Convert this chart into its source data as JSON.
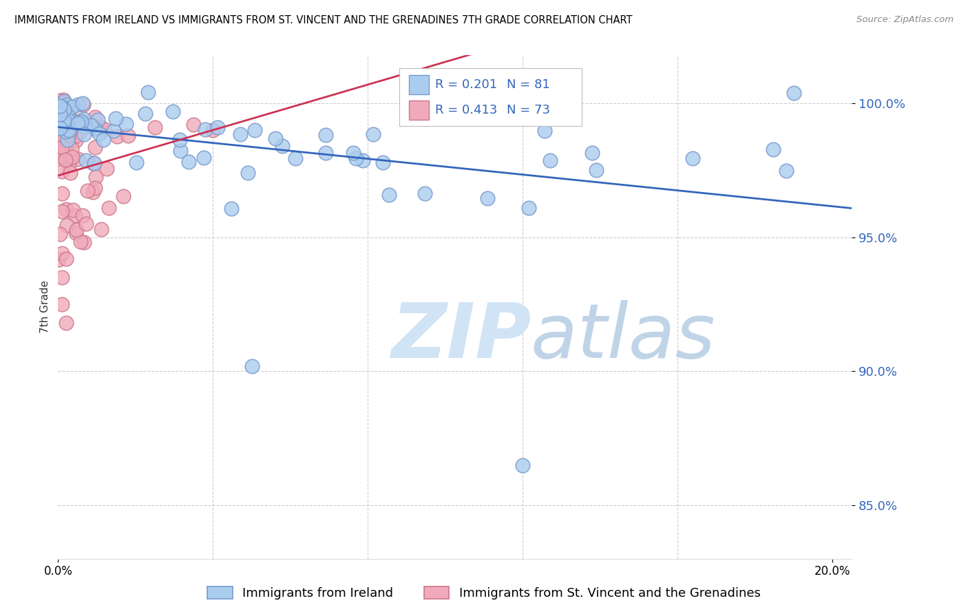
{
  "title": "IMMIGRANTS FROM IRELAND VS IMMIGRANTS FROM ST. VINCENT AND THE GRENADINES 7TH GRADE CORRELATION CHART",
  "source": "Source: ZipAtlas.com",
  "ylabel": "7th Grade",
  "xlim": [
    0.0,
    0.205
  ],
  "ylim": [
    83.0,
    101.8
  ],
  "yticks": [
    85.0,
    90.0,
    95.0,
    100.0
  ],
  "ytick_labels": [
    "85.0%",
    "90.0%",
    "95.0%",
    "100.0%"
  ],
  "xgrid_minor": [
    0.04,
    0.08,
    0.12,
    0.16,
    0.2
  ],
  "ireland_color": "#aaccee",
  "ireland_edge": "#7799cc",
  "stvincent_color": "#f0aabb",
  "stvincent_edge": "#cc7788",
  "ireland_R": 0.201,
  "ireland_N": 81,
  "stvincent_R": 0.413,
  "stvincent_N": 73,
  "ireland_line_color": "#3366bb",
  "stvincent_line_color": "#cc3355",
  "legend_label_ireland": "Immigrants from Ireland",
  "legend_label_stvincent": "Immigrants from St. Vincent and the Grenadines",
  "legend_text_color": "#3366bb",
  "ytick_color": "#3366bb",
  "watermark_zip_color": "#d0e4f5",
  "watermark_atlas_color": "#c0d4e8"
}
